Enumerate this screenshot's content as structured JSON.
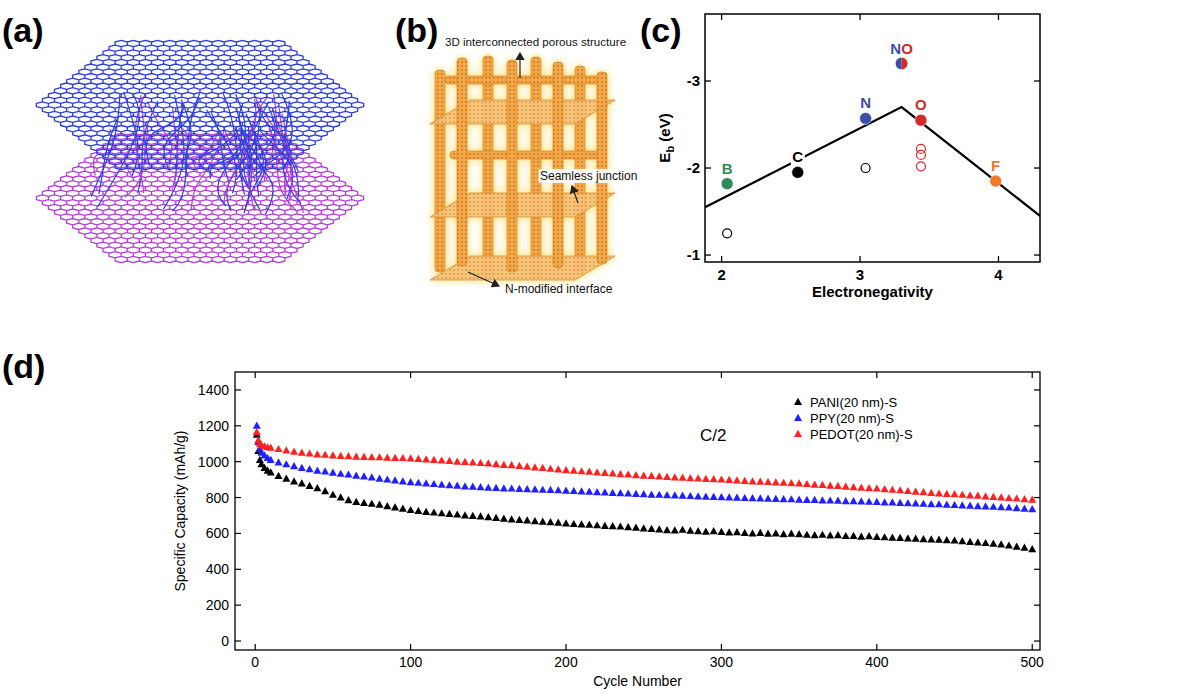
{
  "diagrams": [
    {
      "panel_label": "(a)"
    },
    {
      "panel_label": "(b)",
      "labels": [
        "3D interconnected porous structure",
        "Seamless junction",
        "N-modified interface"
      ]
    }
  ],
  "chart_data": [
    {
      "type": "scatter",
      "panel_label": "(c)",
      "x_label": "Electronegativity",
      "y_label": [
        {
          "text": "E"
        },
        {
          "text": "b",
          "sub": true
        },
        {
          "text": " (eV)"
        }
      ],
      "xlim": [
        1.88,
        4.3
      ],
      "ylim": [
        -0.92,
        -3.77
      ],
      "xticks": [
        2,
        3,
        4
      ],
      "yticks": [
        -3,
        -2,
        -1
      ],
      "grid": false,
      "series": [
        {
          "type": "line",
          "color": "#000000",
          "x": [
            1.88,
            3.3,
            4.3
          ],
          "values": [
            -1.55,
            -2.7,
            -1.45
          ]
        },
        {
          "type": "scatter",
          "marker": "filled",
          "x": [
            2.04,
            2.55,
            3.04,
            3.44,
            3.98,
            3.3
          ],
          "values": [
            -1.82,
            -1.95,
            -2.57,
            -2.55,
            -1.85,
            -3.2
          ],
          "colors": [
            "#2e8b57",
            "#000000",
            "#3b4fa8",
            "#d42a2a",
            "#f07a28",
            [
              "#3b4fa8",
              "#d42a2a"
            ]
          ],
          "point_labels": [
            "B",
            "C",
            "N",
            "O",
            "F",
            "NO"
          ]
        },
        {
          "type": "scatter",
          "marker": "open",
          "x": [
            2.04,
            3.04,
            3.44,
            3.44,
            3.44
          ],
          "values": [
            -1.25,
            -2.0,
            -2.22,
            -2.15,
            -2.02
          ],
          "colors": [
            "#000000",
            "#000000",
            "#d42a2a",
            "#d42a2a",
            "#d42a2a"
          ]
        }
      ]
    },
    {
      "type": "scatter",
      "panel_label": "(d)",
      "x_label": "Cycle Number",
      "y_label": "Specific Capacity (mAh/g)",
      "xlim": [
        -13,
        505
      ],
      "ylim": [
        -50,
        1500
      ],
      "xticks": [
        0,
        100,
        200,
        300,
        400,
        500
      ],
      "yticks": [
        0,
        200,
        400,
        600,
        800,
        1000,
        1200,
        1400
      ],
      "grid": false,
      "legend": "upper right",
      "annotations": [
        {
          "text": "C/2"
        }
      ],
      "x": [
        1,
        2,
        3,
        4,
        6,
        8,
        10,
        15,
        20,
        25,
        30,
        35,
        40,
        45,
        50,
        55,
        60,
        65,
        70,
        75,
        80,
        85,
        90,
        95,
        100,
        105,
        110,
        115,
        120,
        125,
        130,
        135,
        140,
        145,
        150,
        155,
        160,
        165,
        170,
        175,
        180,
        185,
        190,
        195,
        200,
        205,
        210,
        215,
        220,
        225,
        230,
        235,
        240,
        245,
        250,
        255,
        260,
        265,
        270,
        275,
        280,
        285,
        290,
        295,
        300,
        305,
        310,
        315,
        320,
        325,
        330,
        335,
        340,
        345,
        350,
        355,
        360,
        365,
        370,
        375,
        380,
        385,
        390,
        395,
        400,
        405,
        410,
        415,
        420,
        425,
        430,
        435,
        440,
        445,
        450,
        455,
        460,
        465,
        470,
        475,
        480,
        485,
        490,
        495,
        500
      ],
      "series": [
        {
          "name": "PANI(20 nm)-S",
          "color": "#000000",
          "marker": "triangle",
          "values": [
            1150,
            1060,
            1010,
            985,
            965,
            950,
            940,
            920,
            905,
            890,
            878,
            865,
            852,
            835,
            815,
            800,
            785,
            775,
            770,
            765,
            760,
            752,
            745,
            738,
            730,
            725,
            720,
            716,
            712,
            708,
            705,
            700,
            697,
            694,
            690,
            686,
            682,
            678,
            675,
            672,
            668,
            665,
            662,
            660,
            655,
            652,
            650,
            648,
            645,
            642,
            640,
            638,
            635,
            632,
            628,
            625,
            622,
            618,
            616,
            620,
            615,
            612,
            610,
            612,
            608,
            605,
            607,
            603,
            600,
            602,
            598,
            600,
            596,
            598,
            595,
            592,
            590,
            592,
            588,
            590,
            585,
            586,
            582,
            584,
            580,
            578,
            576,
            575,
            572,
            570,
            568,
            566,
            565,
            562,
            560,
            556,
            552,
            550,
            546,
            542,
            538,
            532,
            526,
            520,
            512
          ]
        },
        {
          "name": "PPY(20 nm)-S",
          "color": "#1f1fff",
          "marker": "triangle",
          "values": [
            1200,
            1110,
            1070,
            1050,
            1035,
            1020,
            1010,
            995,
            985,
            975,
            965,
            958,
            950,
            945,
            938,
            932,
            928,
            922,
            918,
            912,
            905,
            900,
            895,
            890,
            885,
            882,
            878,
            875,
            872,
            868,
            866,
            862,
            860,
            858,
            855,
            853,
            851,
            850,
            848,
            846,
            845,
            843,
            842,
            840,
            838,
            836,
            834,
            832,
            830,
            828,
            826,
            824,
            822,
            820,
            818,
            816,
            815,
            813,
            812,
            810,
            808,
            806,
            805,
            803,
            802,
            800,
            799,
            797,
            796,
            795,
            793,
            792,
            791,
            790,
            788,
            787,
            786,
            784,
            783,
            782,
            780,
            779,
            778,
            776,
            775,
            773,
            772,
            770,
            768,
            767,
            765,
            763,
            762,
            760,
            758,
            756,
            754,
            752,
            750,
            748,
            746,
            744,
            741,
            738,
            735
          ]
        },
        {
          "name": "PEDOT(20 nm)-S",
          "color": "#ff2020",
          "marker": "triangle",
          "values": [
            1165,
            1120,
            1100,
            1092,
            1085,
            1080,
            1078,
            1070,
            1062,
            1055,
            1050,
            1045,
            1040,
            1038,
            1035,
            1032,
            1030,
            1028,
            1026,
            1025,
            1024,
            1022,
            1021,
            1020,
            1018,
            1015,
            1012,
            1010,
            1006,
            1004,
            1000,
            998,
            995,
            992,
            990,
            986,
            982,
            980,
            976,
            972,
            968,
            965,
            960,
            956,
            952,
            950,
            946,
            944,
            940,
            937,
            934,
            930,
            928,
            925,
            922,
            920,
            918,
            915,
            912,
            910,
            908,
            906,
            904,
            902,
            900,
            898,
            895,
            892,
            890,
            888,
            886,
            884,
            882,
            880,
            878,
            875,
            872,
            870,
            866,
            864,
            860,
            858,
            855,
            852,
            850,
            846,
            843,
            840,
            836,
            833,
            830,
            826,
            822,
            820,
            818,
            815,
            812,
            810,
            806,
            803,
            800,
            797,
            794,
            791,
            788
          ]
        }
      ]
    }
  ]
}
